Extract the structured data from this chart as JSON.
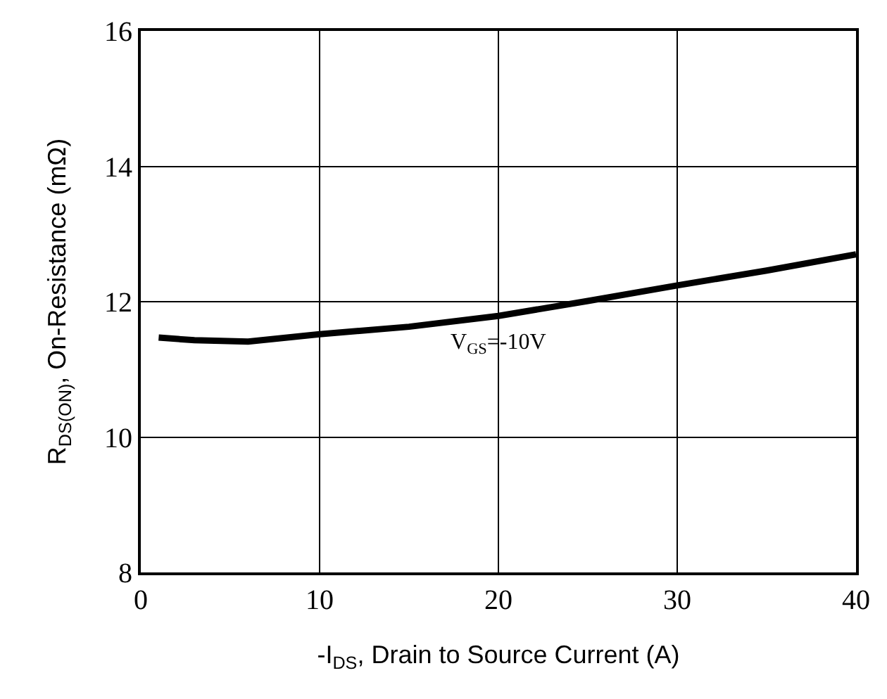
{
  "chart_data": {
    "type": "line",
    "xlabel": "-I$_{DS}$, Drain to Source Current (A)",
    "ylabel": "R$_{DS(ON)}$, On-Resistance (mΩ)",
    "x": [
      1,
      3,
      6,
      10,
      15,
      20,
      25,
      30,
      35,
      40
    ],
    "series": [
      {
        "name": "V$_{GS}$=-10V",
        "color": "#000000",
        "values": [
          11.47,
          11.43,
          11.41,
          11.52,
          11.63,
          11.79,
          12.01,
          12.24,
          12.46,
          12.7
        ]
      }
    ],
    "xlim": [
      0,
      40
    ],
    "xticks": [
      0,
      10,
      20,
      30,
      40
    ],
    "ylim": [
      8,
      16
    ],
    "yticks": [
      8,
      10,
      12,
      14,
      16
    ],
    "grid": true,
    "legend": false,
    "marker": "none",
    "line_style": "solid"
  }
}
